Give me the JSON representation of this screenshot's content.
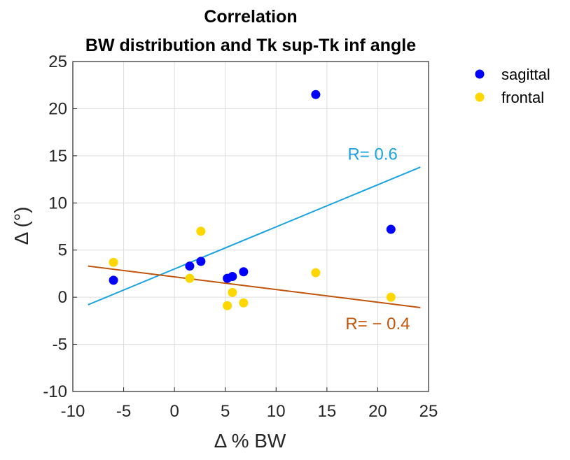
{
  "chart_data": {
    "type": "scatter",
    "title": [
      "Correlation",
      "BW distribution and Tk sup-Tk inf angle"
    ],
    "xlabel": "Δ % BW",
    "ylabel": "Δ (°)",
    "xlim": [
      -10,
      25
    ],
    "ylim": [
      -10,
      25
    ],
    "xticks": [
      -10,
      -5,
      0,
      5,
      10,
      15,
      20,
      25
    ],
    "yticks": [
      -10,
      -5,
      0,
      5,
      10,
      15,
      20,
      25
    ],
    "grid": true,
    "legend_position": "outside-top-right",
    "series": [
      {
        "name": "sagittal",
        "color": "#0000ff",
        "points": [
          [
            -6.0,
            1.8
          ],
          [
            1.5,
            3.3
          ],
          [
            2.6,
            3.8
          ],
          [
            5.2,
            2.0
          ],
          [
            5.7,
            2.2
          ],
          [
            6.8,
            2.7
          ],
          [
            13.9,
            21.5
          ],
          [
            21.3,
            7.2
          ]
        ]
      },
      {
        "name": "frontal",
        "color": "#ffd700",
        "points": [
          [
            -6.0,
            3.7
          ],
          [
            1.5,
            2.0
          ],
          [
            2.6,
            7.0
          ],
          [
            5.2,
            -0.9
          ],
          [
            5.7,
            0.5
          ],
          [
            6.8,
            -0.6
          ],
          [
            13.9,
            2.6
          ],
          [
            21.3,
            0.0
          ]
        ]
      }
    ],
    "fit_lines": [
      {
        "label": "R= 0.6",
        "color": "#1aa3e0",
        "x": [
          -8.5,
          24.2
        ],
        "y": [
          -0.8,
          13.8
        ],
        "label_pos": [
          19.5,
          14.6
        ]
      },
      {
        "label": "R= − 0.4",
        "color": "#c0550a",
        "x": [
          -8.5,
          24.2
        ],
        "y": [
          3.3,
          -1.1
        ],
        "label_pos": [
          20.0,
          -3.4
        ]
      }
    ]
  }
}
